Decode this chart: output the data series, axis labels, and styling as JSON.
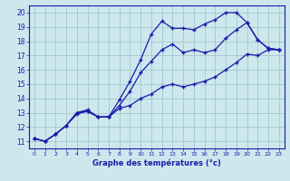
{
  "title": "Graphe des températures (°c)",
  "xlim": [
    -0.5,
    23.5
  ],
  "ylim": [
    10.5,
    20.5
  ],
  "xticks": [
    0,
    1,
    2,
    3,
    4,
    5,
    6,
    7,
    8,
    9,
    10,
    11,
    12,
    13,
    14,
    15,
    16,
    17,
    18,
    19,
    20,
    21,
    22,
    23
  ],
  "yticks": [
    11,
    12,
    13,
    14,
    15,
    16,
    17,
    18,
    19,
    20
  ],
  "bg_color": "#cce8ed",
  "line_color": "#1a1aaa",
  "grid_color": "#9bbfc8",
  "series": [
    {
      "x": [
        0,
        1,
        2,
        3,
        4,
        5,
        6,
        7,
        8,
        9,
        10,
        11,
        12,
        13,
        14,
        15,
        16,
        17,
        18,
        19,
        20,
        21,
        22,
        23
      ],
      "y": [
        11.2,
        11.0,
        11.5,
        12.1,
        13.0,
        13.1,
        12.7,
        12.7,
        13.3,
        13.5,
        14.0,
        14.3,
        14.8,
        15.0,
        14.8,
        15.0,
        15.2,
        15.5,
        16.0,
        16.5,
        17.1,
        17.0,
        17.4,
        17.4
      ]
    },
    {
      "x": [
        0,
        1,
        2,
        3,
        4,
        5,
        6,
        7,
        8,
        9,
        10,
        11,
        12,
        13,
        14,
        15,
        16,
        17,
        18,
        19,
        20,
        21,
        22,
        23
      ],
      "y": [
        11.2,
        11.0,
        11.5,
        12.1,
        13.0,
        13.2,
        12.7,
        12.7,
        13.5,
        14.5,
        15.8,
        16.6,
        17.4,
        17.8,
        17.2,
        17.4,
        17.2,
        17.4,
        18.2,
        18.8,
        19.3,
        18.1,
        17.5,
        17.4
      ]
    },
    {
      "x": [
        0,
        1,
        2,
        3,
        4,
        5,
        6,
        7,
        8,
        9,
        10,
        11,
        12,
        13,
        14,
        15,
        16,
        17,
        18,
        19,
        20,
        21,
        22,
        23
      ],
      "y": [
        11.2,
        11.0,
        11.5,
        12.1,
        12.9,
        13.1,
        12.7,
        12.7,
        13.9,
        15.2,
        16.7,
        18.5,
        19.4,
        18.9,
        18.9,
        18.8,
        19.2,
        19.5,
        20.0,
        20.0,
        19.3,
        18.1,
        17.5,
        17.4
      ]
    }
  ]
}
